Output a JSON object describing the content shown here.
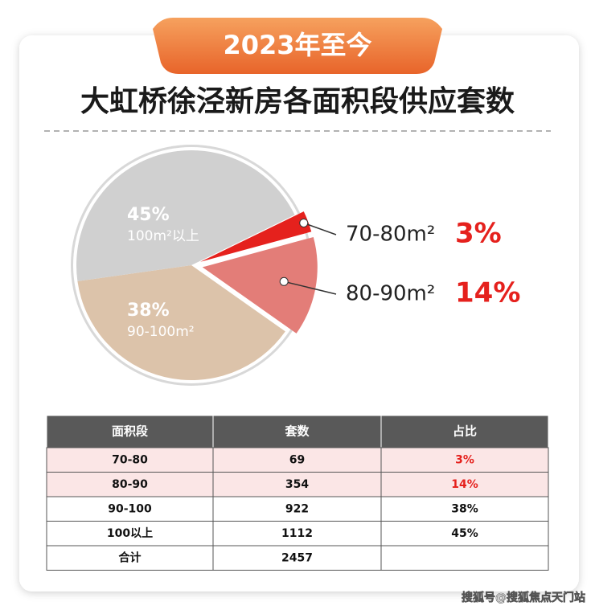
{
  "badge": "2023年至今",
  "chart_data": {
    "type": "pie",
    "title": "大虹桥徐泾新房各面积段供应套数",
    "categories": [
      "70-80m²",
      "80-90m²",
      "90-100m²",
      "100m²以上"
    ],
    "values": [
      3,
      14,
      38,
      45
    ],
    "value_labels": [
      "3%",
      "14%",
      "38%",
      "45%"
    ],
    "colors": [
      "#e5211d",
      "#e37d78",
      "#dcc3aa",
      "#d0d0d0"
    ]
  },
  "table": {
    "header": [
      "面积段",
      "套数",
      "占比"
    ],
    "rows": [
      [
        "70-80",
        "69",
        "3%"
      ],
      [
        "80-90",
        "354",
        "14%"
      ],
      [
        "90-100",
        "922",
        "38%"
      ],
      [
        "100以上",
        "1112",
        "45%"
      ],
      [
        "合计",
        "2457"
      ]
    ]
  },
  "watermark": "搜狐号@搜狐焦点天门站"
}
